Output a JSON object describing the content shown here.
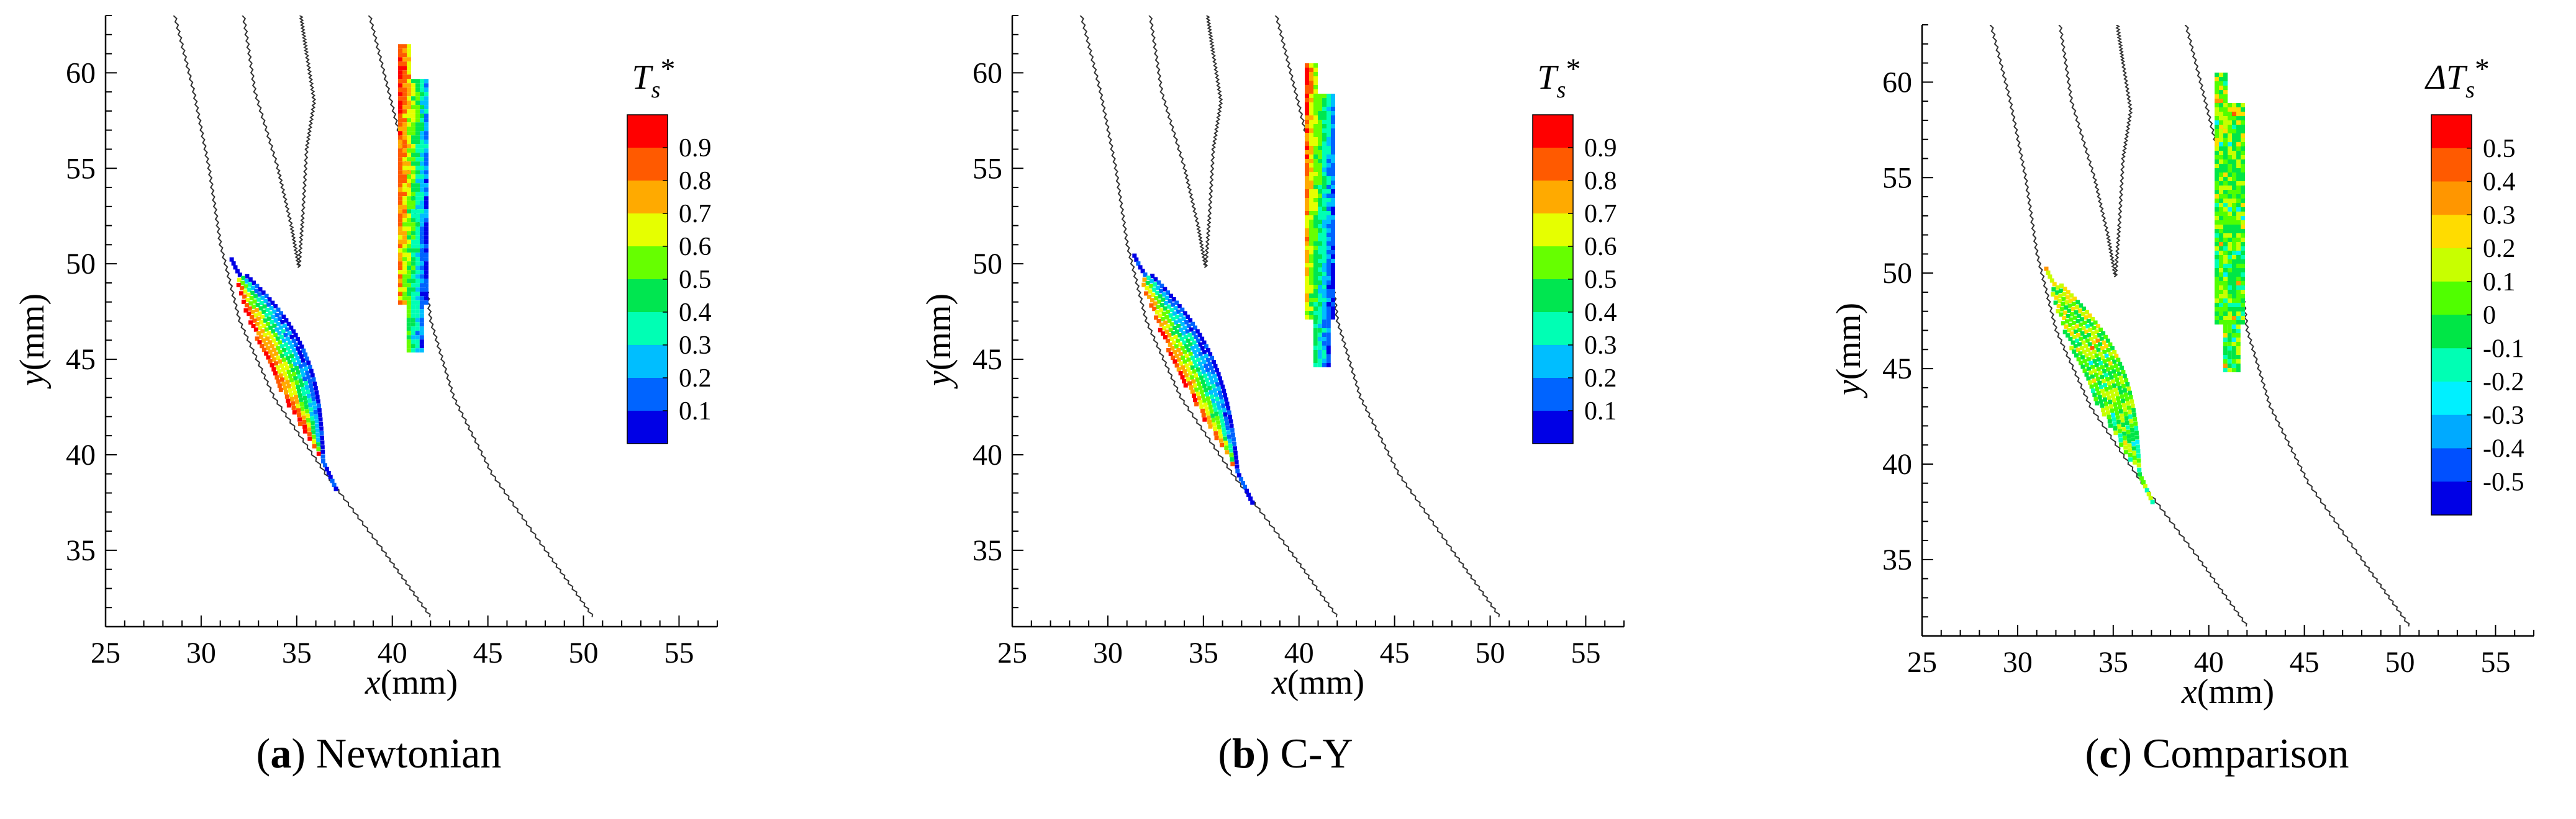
{
  "figure": {
    "panels": [
      {
        "caption_letter": "a",
        "caption_text": "Newtonian",
        "chart_data": {
          "type": "heatmap",
          "title": "",
          "xlabel": "x(mm)",
          "ylabel": "y(mm)",
          "xlim": [
            25,
            57
          ],
          "ylim": [
            31,
            63
          ],
          "xticks": [
            25,
            30,
            35,
            40,
            45,
            50,
            55
          ],
          "yticks": [
            35,
            40,
            45,
            50,
            55,
            60
          ],
          "legend": {
            "title_main": "T",
            "title_sub": "s",
            "title_sup": "*",
            "levels": [
              "0.9",
              "0.8",
              "0.7",
              "0.6",
              "0.5",
              "0.4",
              "0.3",
              "0.2",
              "0.1"
            ],
            "colors": [
              "#ff0000",
              "#ff5a00",
              "#ffaa00",
              "#e6ff00",
              "#66ff00",
              "#00e650",
              "#00ffb4",
              "#00beff",
              "#0064ff",
              "#0000e6"
            ]
          },
          "regions": [
            {
              "name": "lower-streak",
              "start": [
                31.4,
                50.3
              ],
              "end": [
                37.0,
                38.2
              ],
              "half_width": 1.5,
              "scheme": "newtonian"
            },
            {
              "name": "upper-streak",
              "x_range": [
                40.3,
                41.8
              ],
              "y_range": [
                45.5,
                61.5
              ],
              "scheme": "newtonian"
            }
          ]
        }
      },
      {
        "caption_letter": "b",
        "caption_text": "C-Y",
        "chart_data": {
          "type": "heatmap",
          "title": "",
          "xlabel": "x(mm)",
          "ylabel": "y(mm)",
          "xlim": [
            25,
            57
          ],
          "ylim": [
            31,
            63
          ],
          "xticks": [
            25,
            30,
            35,
            40,
            45,
            50,
            55
          ],
          "yticks": [
            35,
            40,
            45,
            50,
            55,
            60
          ],
          "legend": {
            "title_main": "T",
            "title_sub": "s",
            "title_sup": "*",
            "levels": [
              "0.9",
              "0.8",
              "0.7",
              "0.6",
              "0.5",
              "0.4",
              "0.3",
              "0.2",
              "0.1"
            ],
            "colors": [
              "#ff0000",
              "#ff5a00",
              "#ffaa00",
              "#e6ff00",
              "#66ff00",
              "#00e650",
              "#00ffb4",
              "#00beff",
              "#0064ff",
              "#0000e6"
            ]
          },
          "regions": [
            {
              "name": "lower-streak",
              "start": [
                31.2,
                50.5
              ],
              "end": [
                37.5,
                37.5
              ],
              "half_width": 1.4,
              "scheme": "cy"
            },
            {
              "name": "upper-streak",
              "x_range": [
                40.3,
                41.8
              ],
              "y_range": [
                44.8,
                60.5
              ],
              "scheme": "cy"
            }
          ]
        }
      },
      {
        "caption_letter": "c",
        "caption_text": "Comparison",
        "chart_data": {
          "type": "heatmap",
          "title": "",
          "xlabel": "x(mm)",
          "ylabel": "y(mm)",
          "xlim": [
            25,
            57
          ],
          "ylim": [
            31,
            63
          ],
          "xticks": [
            25,
            30,
            35,
            40,
            45,
            50,
            55
          ],
          "yticks": [
            35,
            40,
            45,
            50,
            55,
            60
          ],
          "legend": {
            "title_main": "ΔT",
            "title_sub": "s",
            "title_sup": "*",
            "levels": [
              "0.5",
              "0.4",
              "0.3",
              "0.2",
              "0.1",
              "0",
              "-0.1",
              "-0.2",
              "-0.3",
              "-0.4",
              "-0.5"
            ],
            "colors": [
              "#ff0000",
              "#ff5a00",
              "#ff9600",
              "#ffdc00",
              "#c8ff00",
              "#50ff00",
              "#00e646",
              "#00ffb4",
              "#00f0ff",
              "#00aaff",
              "#0050ff",
              "#0000e6"
            ]
          },
          "regions": [
            {
              "name": "lower-streak",
              "start": [
                31.3,
                50.3
              ],
              "end": [
                37.0,
                38.0
              ],
              "half_width": 1.5,
              "scheme": "diff"
            },
            {
              "name": "upper-streak",
              "x_range": [
                40.3,
                41.8
              ],
              "y_range": [
                45.0,
                60.5
              ],
              "scheme": "diff"
            }
          ]
        }
      }
    ],
    "geometry_curves": {
      "left_wall": [
        [
          28.6,
          63.0
        ],
        [
          29.6,
          59.0
        ],
        [
          30.4,
          55.0
        ],
        [
          31.0,
          51.0
        ],
        [
          32.0,
          47.0
        ],
        [
          33.8,
          43.0
        ],
        [
          36.5,
          39.0
        ],
        [
          39.5,
          35.0
        ],
        [
          42.0,
          31.5
        ]
      ],
      "right_wall": [
        [
          38.8,
          63.0
        ],
        [
          39.8,
          59.0
        ],
        [
          40.8,
          55.0
        ],
        [
          41.5,
          51.0
        ],
        [
          42.0,
          47.0
        ],
        [
          43.2,
          43.0
        ],
        [
          45.2,
          39.0
        ],
        [
          48.0,
          35.0
        ],
        [
          50.5,
          31.5
        ]
      ],
      "inner_blade": [
        [
          32.2,
          63.0
        ],
        [
          32.8,
          59.0
        ],
        [
          34.0,
          55.0
        ],
        [
          34.7,
          52.0
        ],
        [
          35.1,
          49.8
        ],
        [
          35.3,
          52.5
        ],
        [
          35.5,
          56.0
        ],
        [
          35.9,
          58.5
        ],
        [
          35.5,
          61.0
        ],
        [
          35.2,
          63.0
        ]
      ]
    }
  }
}
